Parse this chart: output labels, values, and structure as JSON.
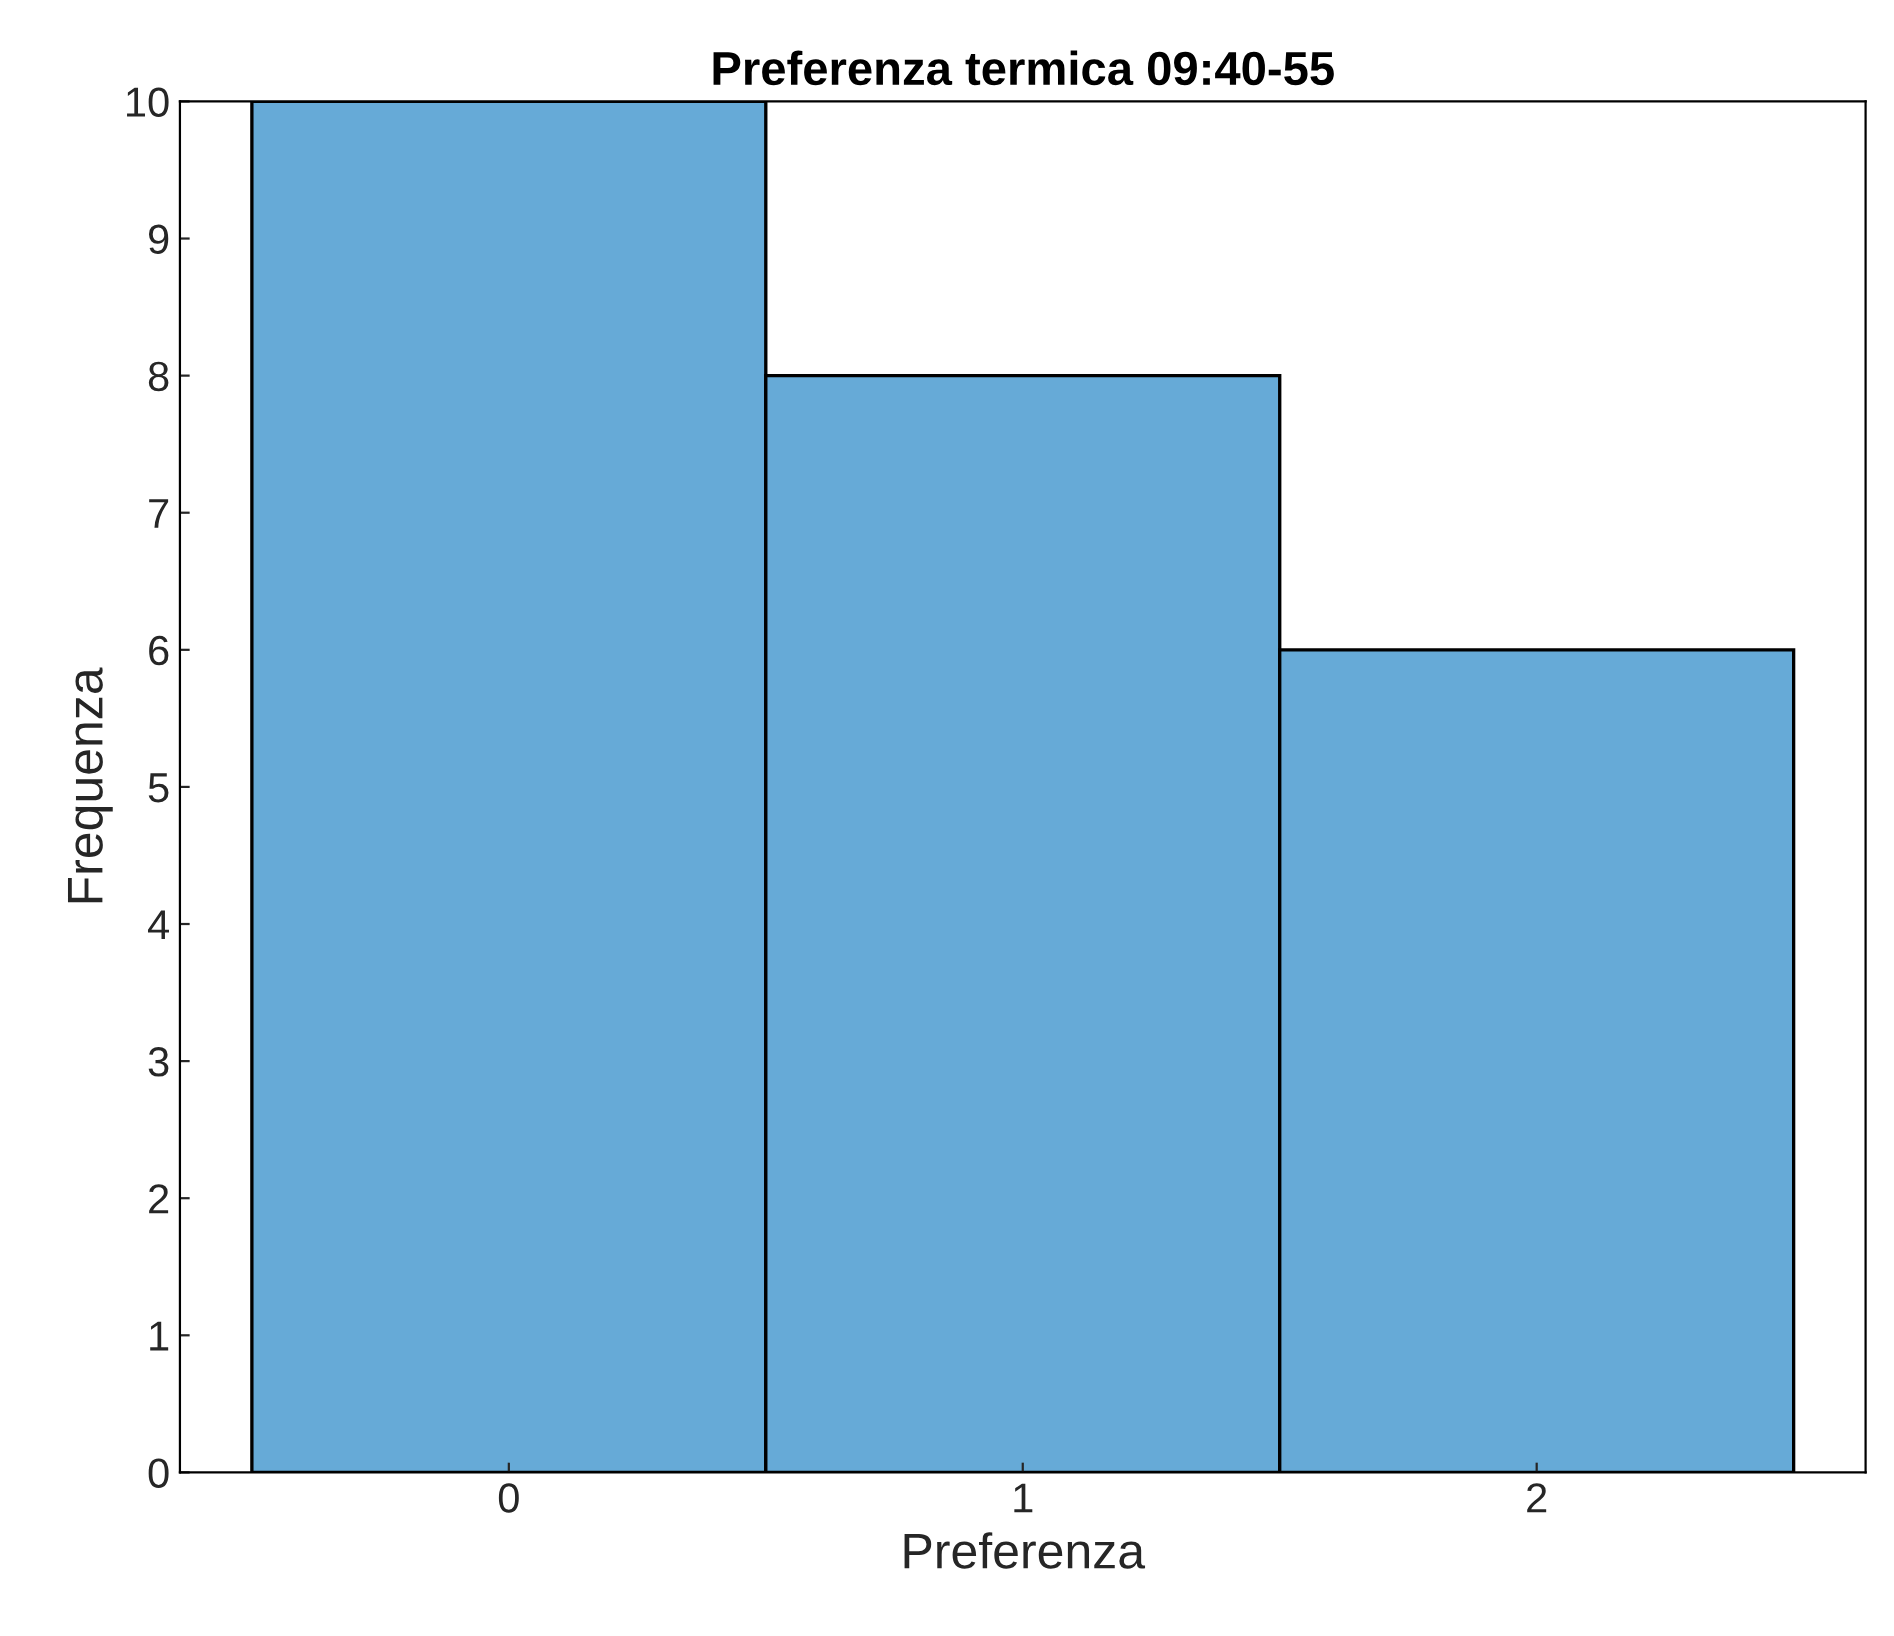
{
  "chart_data": {
    "type": "histogram",
    "title": "Preferenza termica 09:40-55",
    "xlabel": "Preferenza",
    "ylabel": "Frequenza",
    "bins": [
      -0.5,
      0.5,
      1.5,
      2.5
    ],
    "values": [
      10,
      8,
      6
    ],
    "color": "#66aad7",
    "xlim": [
      -0.64,
      2.64
    ],
    "xticks": [
      0,
      1,
      2
    ],
    "ylim": [
      0,
      10
    ],
    "yticks": [
      0,
      1,
      2,
      3,
      4,
      5,
      6,
      7,
      8,
      9,
      10
    ],
    "grid": false
  }
}
